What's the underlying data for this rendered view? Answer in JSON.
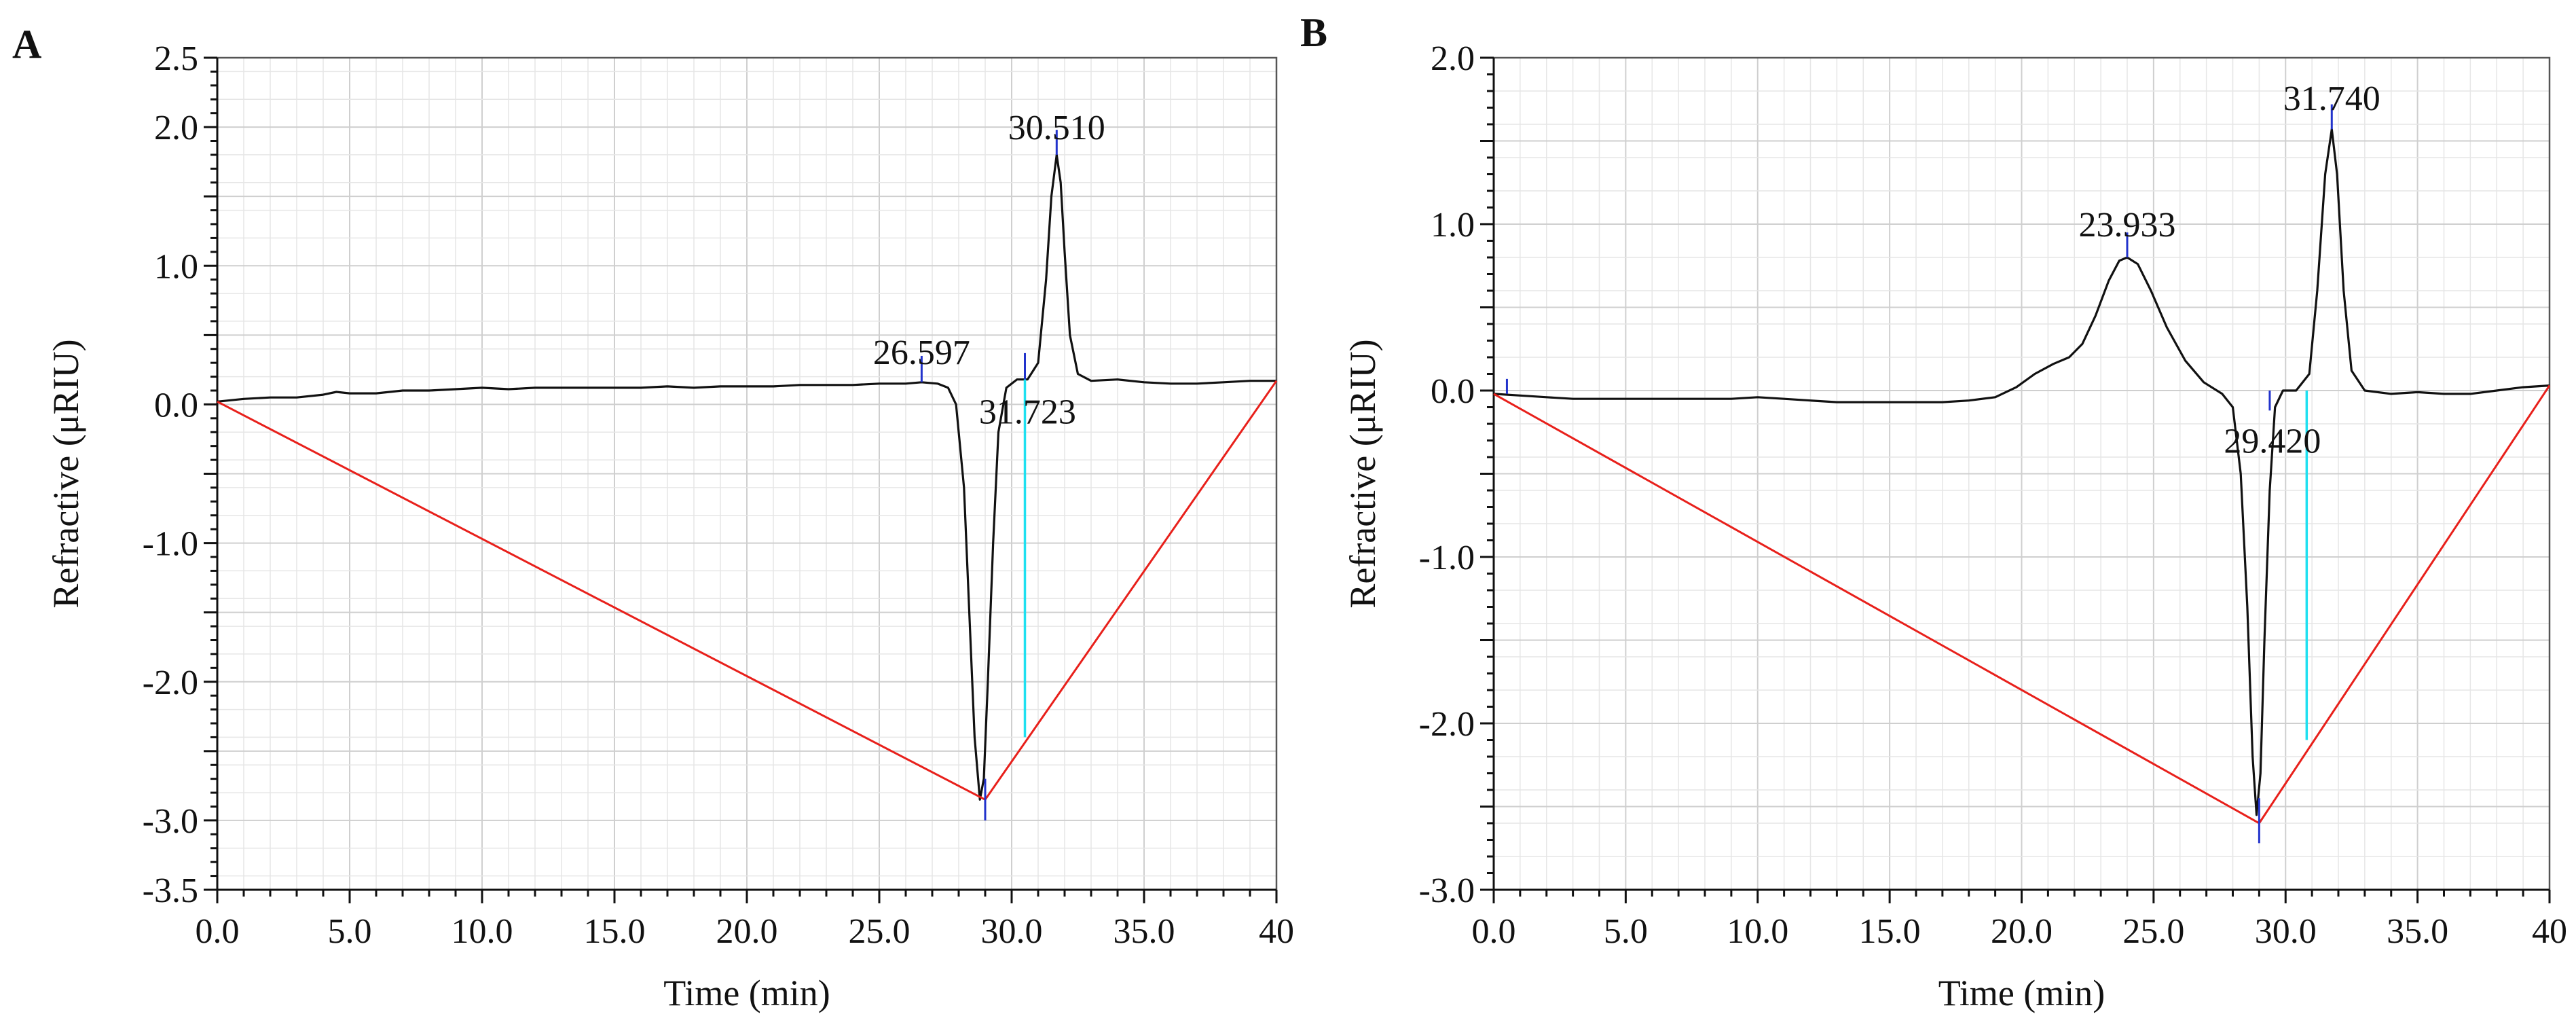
{
  "chart_data": [
    {
      "panel": "A",
      "type": "line",
      "title": "",
      "xlabel": "Time (min)",
      "ylabel": "Refractive (μRIU)",
      "xlim": [
        0,
        40
      ],
      "ylim": [
        -3.5,
        2.5
      ],
      "x_ticks": [
        0,
        5,
        10,
        15,
        20,
        25,
        30,
        35,
        40
      ],
      "x_tick_labels": [
        "0.0",
        "5.0",
        "10.0",
        "15.0",
        "20.0",
        "25.0",
        "30.0",
        "35.0",
        "40"
      ],
      "y_ticks": [
        2.5,
        2.0,
        1.0,
        0.0,
        -1.0,
        -2.0,
        -3.0,
        -3.5
      ],
      "y_tick_labels": [
        "2.5",
        "2.0",
        "1.0",
        "0.0",
        "-1.0",
        "-2.0",
        "-3.0",
        "-3.5"
      ],
      "grid": true,
      "series": [
        {
          "name": "RI signal",
          "color": "#111111",
          "points": [
            [
              0,
              0.02
            ],
            [
              1,
              0.04
            ],
            [
              2,
              0.05
            ],
            [
              3,
              0.05
            ],
            [
              4,
              0.07
            ],
            [
              4.5,
              0.09
            ],
            [
              5,
              0.08
            ],
            [
              6,
              0.08
            ],
            [
              7,
              0.1
            ],
            [
              8,
              0.1
            ],
            [
              9,
              0.11
            ],
            [
              10,
              0.12
            ],
            [
              11,
              0.11
            ],
            [
              12,
              0.12
            ],
            [
              13,
              0.12
            ],
            [
              14,
              0.12
            ],
            [
              15,
              0.12
            ],
            [
              16,
              0.12
            ],
            [
              17,
              0.13
            ],
            [
              18,
              0.12
            ],
            [
              19,
              0.13
            ],
            [
              20,
              0.13
            ],
            [
              21,
              0.13
            ],
            [
              22,
              0.14
            ],
            [
              23,
              0.14
            ],
            [
              24,
              0.14
            ],
            [
              25,
              0.15
            ],
            [
              26,
              0.15
            ],
            [
              26.6,
              0.16
            ],
            [
              27.2,
              0.15
            ],
            [
              27.6,
              0.12
            ],
            [
              27.9,
              0.0
            ],
            [
              28.2,
              -0.6
            ],
            [
              28.4,
              -1.5
            ],
            [
              28.6,
              -2.4
            ],
            [
              28.8,
              -2.85
            ],
            [
              28.95,
              -2.7
            ],
            [
              29.1,
              -2.0
            ],
            [
              29.3,
              -1.0
            ],
            [
              29.5,
              -0.2
            ],
            [
              29.8,
              0.12
            ],
            [
              30.2,
              0.18
            ],
            [
              30.6,
              0.18
            ],
            [
              31.0,
              0.3
            ],
            [
              31.3,
              0.9
            ],
            [
              31.5,
              1.5
            ],
            [
              31.7,
              1.8
            ],
            [
              31.85,
              1.6
            ],
            [
              32.0,
              1.1
            ],
            [
              32.2,
              0.5
            ],
            [
              32.5,
              0.22
            ],
            [
              33,
              0.17
            ],
            [
              34,
              0.18
            ],
            [
              35,
              0.16
            ],
            [
              36,
              0.15
            ],
            [
              37,
              0.15
            ],
            [
              38,
              0.16
            ],
            [
              39,
              0.17
            ],
            [
              40,
              0.17
            ]
          ]
        },
        {
          "name": "Baseline",
          "color": "#e8201b",
          "points": [
            [
              0,
              0.02
            ],
            [
              29.0,
              -2.85
            ],
            [
              40,
              0.17
            ]
          ]
        }
      ],
      "drop_lines": [
        {
          "x": 30.5,
          "y_from": 0.18,
          "y_to": -2.4,
          "color": "#1ee0f0"
        }
      ],
      "peak_markers": [
        {
          "x": 26.6,
          "y_from": 0.16,
          "y_to": 0.35
        },
        {
          "x": 30.5,
          "y_from": 0.18,
          "y_to": 0.37
        },
        {
          "x": 31.7,
          "y_from": 1.8,
          "y_to": 1.98
        },
        {
          "x": 29.0,
          "y_from": -3.0,
          "y_to": -2.7
        }
      ],
      "annotations": [
        {
          "text": "30.510",
          "x": 31.7,
          "y": 2.0
        },
        {
          "text": "26.597",
          "x": 26.6,
          "y": 0.38
        },
        {
          "text": "31.723",
          "x": 30.6,
          "y": -0.05
        }
      ]
    },
    {
      "panel": "B",
      "type": "line",
      "title": "",
      "xlabel": "Time (min)",
      "ylabel": "Refractive (μRIU)",
      "xlim": [
        0,
        40
      ],
      "ylim": [
        -3.0,
        2.0
      ],
      "x_ticks": [
        0,
        5,
        10,
        15,
        20,
        25,
        30,
        35,
        40
      ],
      "x_tick_labels": [
        "0.0",
        "5.0",
        "10.0",
        "15.0",
        "20.0",
        "25.0",
        "30.0",
        "35.0",
        "40"
      ],
      "y_ticks": [
        2.0,
        1.0,
        0.0,
        -1.0,
        -2.0,
        -3.0
      ],
      "y_tick_labels": [
        "2.0",
        "1.0",
        "0.0",
        "-1.0",
        "-2.0",
        "-3.0"
      ],
      "grid": true,
      "series": [
        {
          "name": "RI signal",
          "color": "#111111",
          "points": [
            [
              0,
              -0.02
            ],
            [
              1,
              -0.03
            ],
            [
              2,
              -0.04
            ],
            [
              3,
              -0.05
            ],
            [
              4,
              -0.05
            ],
            [
              5,
              -0.05
            ],
            [
              6,
              -0.05
            ],
            [
              7,
              -0.05
            ],
            [
              8,
              -0.05
            ],
            [
              9,
              -0.05
            ],
            [
              10,
              -0.04
            ],
            [
              11,
              -0.05
            ],
            [
              12,
              -0.06
            ],
            [
              13,
              -0.07
            ],
            [
              14,
              -0.07
            ],
            [
              15,
              -0.07
            ],
            [
              16,
              -0.07
            ],
            [
              17,
              -0.07
            ],
            [
              18,
              -0.06
            ],
            [
              19,
              -0.04
            ],
            [
              19.8,
              0.02
            ],
            [
              20.5,
              0.1
            ],
            [
              21.2,
              0.16
            ],
            [
              21.8,
              0.2
            ],
            [
              22.3,
              0.28
            ],
            [
              22.8,
              0.45
            ],
            [
              23.3,
              0.66
            ],
            [
              23.7,
              0.78
            ],
            [
              24.0,
              0.8
            ],
            [
              24.4,
              0.76
            ],
            [
              24.9,
              0.6
            ],
            [
              25.5,
              0.38
            ],
            [
              26.2,
              0.18
            ],
            [
              26.9,
              0.05
            ],
            [
              27.6,
              -0.02
            ],
            [
              28.0,
              -0.1
            ],
            [
              28.3,
              -0.5
            ],
            [
              28.55,
              -1.3
            ],
            [
              28.75,
              -2.2
            ],
            [
              28.9,
              -2.55
            ],
            [
              29.05,
              -2.3
            ],
            [
              29.2,
              -1.5
            ],
            [
              29.4,
              -0.6
            ],
            [
              29.6,
              -0.1
            ],
            [
              29.9,
              0.0
            ],
            [
              30.4,
              0.0
            ],
            [
              30.9,
              0.1
            ],
            [
              31.2,
              0.6
            ],
            [
              31.5,
              1.3
            ],
            [
              31.75,
              1.57
            ],
            [
              31.95,
              1.3
            ],
            [
              32.2,
              0.6
            ],
            [
              32.5,
              0.12
            ],
            [
              33,
              0.0
            ],
            [
              34,
              -0.02
            ],
            [
              35,
              -0.01
            ],
            [
              36,
              -0.02
            ],
            [
              37,
              -0.02
            ],
            [
              38,
              0.0
            ],
            [
              39,
              0.02
            ],
            [
              40,
              0.03
            ]
          ]
        },
        {
          "name": "Baseline",
          "color": "#e8201b",
          "points": [
            [
              0,
              -0.02
            ],
            [
              29.0,
              -2.6
            ],
            [
              40,
              0.03
            ]
          ]
        }
      ],
      "drop_lines": [
        {
          "x": 30.8,
          "y_from": 0.0,
          "y_to": -2.1,
          "color": "#1ee0f0"
        }
      ],
      "peak_markers": [
        {
          "x": 0.5,
          "y_from": -0.02,
          "y_to": 0.07
        },
        {
          "x": 24.0,
          "y_from": 0.8,
          "y_to": 0.95
        },
        {
          "x": 31.75,
          "y_from": 1.57,
          "y_to": 1.72
        },
        {
          "x": 29.4,
          "y_from": -0.12,
          "y_to": 0.0
        },
        {
          "x": 29.0,
          "y_from": -2.72,
          "y_to": -2.45
        }
      ],
      "annotations": [
        {
          "text": "31.740",
          "x": 31.75,
          "y": 1.76
        },
        {
          "text": "23.933",
          "x": 24.0,
          "y": 1.0
        },
        {
          "text": "29.420",
          "x": 29.5,
          "y": -0.3
        }
      ]
    }
  ]
}
